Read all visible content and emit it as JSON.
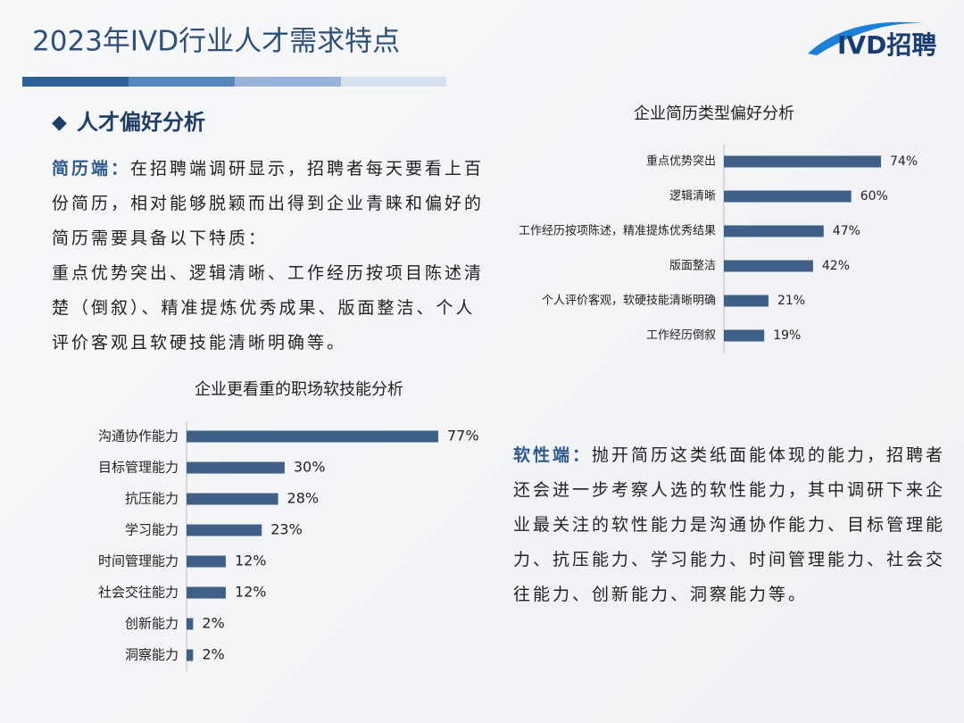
{
  "header": {
    "title": "2023年IVD行业人才需求特点",
    "logo": "IVD招聘"
  },
  "section_title": "人才偏好分析",
  "resume": {
    "label": "简历端：",
    "body_lines": [
      "在招聘端调研显示，招聘者每天要看上百份简历，相对能够脱颖而出得到企业青睐和偏好的简历需要具备以下特质：",
      "重点优势突出、逻辑清晰、工作经历按项目陈述清楚（倒叙）、精准提炼优秀成果、版面整洁、个人评价客观且软硬技能清晰明确等。"
    ]
  },
  "soft": {
    "label": "软性端：",
    "body": "抛开简历这类纸面能体现的能力，招聘者还会进一步考察人选的软性能力，其中调研下来企业最关注的软性能力是沟通协作能力、目标管理能力、抗压能力、学习能力、时间管理能力、社会交往能力、创新能力、洞察能力等。"
  },
  "chart_data": [
    {
      "type": "bar",
      "orientation": "horizontal",
      "title": "企业简历类型偏好分析",
      "color": "#3f5f86",
      "categories": [
        "重点优势突出",
        "逻辑清晰",
        "工作经历按项陈述，精准提炼优秀结果",
        "版面整洁",
        "个人评价客观，软硬技能清晰明确",
        "工作经历倒叙"
      ],
      "values": [
        74,
        60,
        47,
        42,
        21,
        19
      ],
      "value_labels": [
        "74%",
        "60%",
        "47%",
        "42%",
        "21%",
        "19%"
      ]
    },
    {
      "type": "bar",
      "orientation": "horizontal",
      "title": "企业更看重的职场软技能分析",
      "color": "#3f5f86",
      "categories": [
        "沟通协作能力",
        "目标管理能力",
        "抗压能力",
        "学习能力",
        "时间管理能力",
        "社会交往能力",
        "创新能力",
        "洞察能力"
      ],
      "values": [
        77,
        30,
        28,
        23,
        12,
        12,
        2,
        2
      ],
      "value_labels": [
        "77%",
        "30%",
        "28%",
        "23%",
        "12%",
        "12%",
        "2%",
        "2%"
      ]
    }
  ]
}
